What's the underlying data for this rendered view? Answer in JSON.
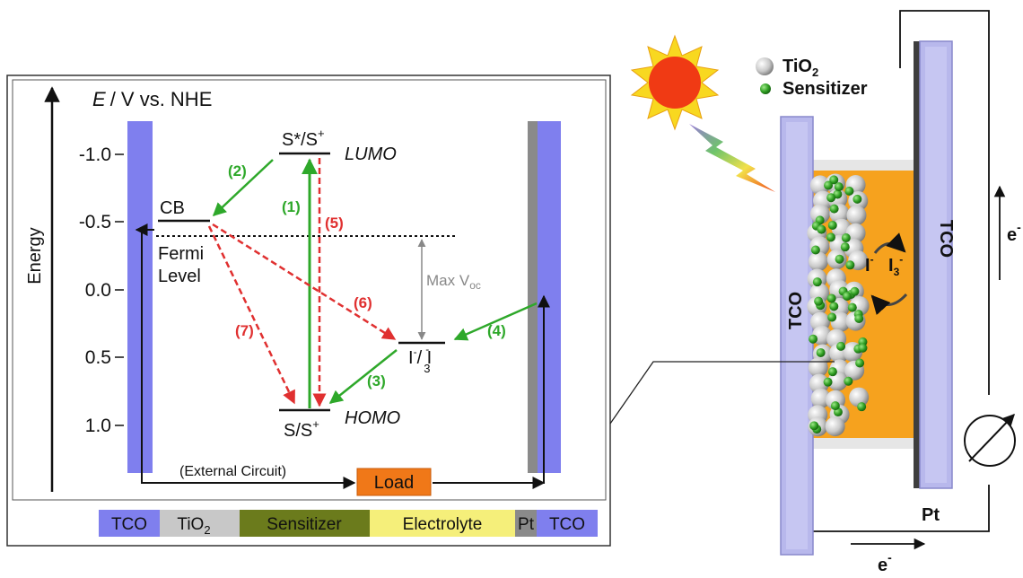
{
  "diagram": {
    "axis_title": "E / V vs. NHE",
    "axis_title_e": "E",
    "axis_title_rest": "/ V vs. NHE",
    "energy_label": "Energy",
    "ticks": [
      "-1.0",
      "-0.5",
      "0.0",
      "0.5",
      "1.0"
    ],
    "levels": {
      "excited": "S*/S",
      "excited_sup": "+",
      "lumo": "LUMO",
      "cb": "CB",
      "fermi_1": "Fermi",
      "fermi_2": "Level",
      "ground": "S/S",
      "ground_sup": "+",
      "homo": "HOMO",
      "redox_i": "I",
      "redox_sep": "/ I",
      "redox_sub": "3",
      "redox_sup": "-"
    },
    "max_voc_main": "Max V",
    "max_voc_sub": "oc",
    "processes": {
      "p1": "(1)",
      "p2": "(2)",
      "p3": "(3)",
      "p4": "(4)",
      "p5": "(5)",
      "p6": "(6)",
      "p7": "(7)"
    },
    "external_circuit": "(External Circuit)",
    "load": "Load",
    "layers": [
      "TCO",
      "TiO",
      "Sensitizer",
      "Electrolyte",
      "Pt",
      "TCO"
    ],
    "tio2_sub": "2"
  },
  "cell": {
    "legend_tio2": "TiO",
    "legend_tio2_sub": "2",
    "legend_sensitizer": "Sensitizer",
    "tco_left": "TCO",
    "tco_right": "TCO",
    "pt": "Pt",
    "electron_top": "e",
    "electron_bottom": "e",
    "electron_sup": "-",
    "iodide": "I",
    "triiodide": "I",
    "triiodide_sub": "3"
  },
  "colors": {
    "tco": "#7f7fee",
    "tio2": "#c8c8c8",
    "sensitizer": "#6b7b1c",
    "electrolyte": "#f5ef7a",
    "pt": "#8a8a8a",
    "load": "#f07818",
    "green_process": "#2ea82a",
    "red_process": "#e03030",
    "electrolyte_cell": "#f6a21e"
  }
}
